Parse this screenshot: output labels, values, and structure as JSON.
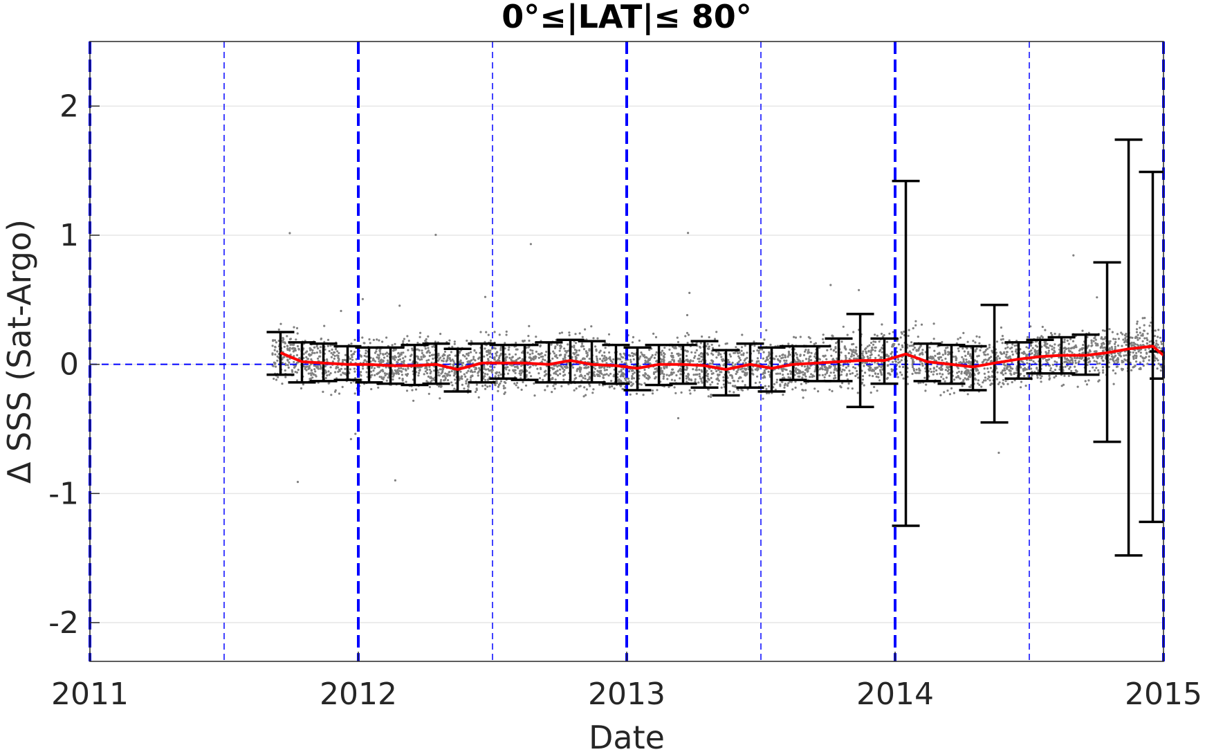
{
  "chart_data": {
    "type": "scatter",
    "title": "0°≤|LAT|≤ 80°",
    "xlabel": "Date",
    "ylabel": "Δ SSS (Sat-Argo)",
    "xlim": [
      2011.0,
      2015.0
    ],
    "ylim": [
      -2.3,
      2.5
    ],
    "x_ticks": [
      2011,
      2012,
      2013,
      2014,
      2015
    ],
    "x_tick_labels": [
      "2011",
      "2012",
      "2013",
      "2014",
      "2015"
    ],
    "y_ticks": [
      -2,
      -1,
      0,
      1,
      2
    ],
    "y_tick_labels": [
      "-2",
      "-1",
      "0",
      "1",
      "2"
    ],
    "grid": true,
    "colors": {
      "points": "#808080",
      "mean_line": "#ff0000",
      "error_bars": "#000000",
      "year_lines": "#0000ff",
      "zero_line": "#0000ff"
    },
    "year_lines": [
      2011.0,
      2012.0,
      2013.0,
      2014.0,
      2015.0
    ],
    "half_year_lines": [
      2011.5,
      2012.5,
      2013.5,
      2014.5
    ],
    "series": [
      {
        "kind": "errorbar",
        "x": [
          2011.71,
          2011.79,
          2011.87,
          2011.96,
          2012.04,
          2012.12,
          2012.21,
          2012.29,
          2012.37,
          2012.46,
          2012.54,
          2012.62,
          2012.71,
          2012.79,
          2012.87,
          2012.96,
          2013.04,
          2013.12,
          2013.21,
          2013.29,
          2013.37,
          2013.46,
          2013.54,
          2013.62,
          2013.71,
          2013.79,
          2013.87,
          2013.96,
          2014.04,
          2014.12,
          2014.21,
          2014.29,
          2014.37,
          2014.46,
          2014.54,
          2014.62,
          2014.71,
          2014.79,
          2014.87,
          2014.96,
          2015.0
        ],
        "mean": [
          0.09,
          0.02,
          0.01,
          0.0,
          0.0,
          -0.01,
          -0.01,
          0.0,
          -0.04,
          0.01,
          0.01,
          0.01,
          0.0,
          0.03,
          0.0,
          -0.01,
          -0.03,
          0.0,
          0.0,
          -0.01,
          -0.04,
          0.0,
          -0.03,
          0.0,
          0.01,
          0.02,
          0.03,
          0.03,
          0.08,
          0.02,
          0.0,
          -0.02,
          0.01,
          0.04,
          0.06,
          0.07,
          0.07,
          0.09,
          0.12,
          0.14,
          0.07
        ],
        "upper": [
          0.25,
          0.17,
          0.16,
          0.14,
          0.13,
          0.13,
          0.15,
          0.16,
          0.12,
          0.16,
          0.15,
          0.15,
          0.17,
          0.19,
          0.18,
          0.15,
          0.13,
          0.15,
          0.15,
          0.18,
          0.11,
          0.16,
          0.13,
          0.14,
          0.14,
          0.2,
          0.39,
          0.2,
          1.42,
          0.16,
          0.15,
          0.14,
          0.46,
          0.17,
          0.19,
          0.21,
          0.23,
          0.79,
          1.74,
          1.49,
          0.1
        ],
        "lower": [
          -0.08,
          -0.14,
          -0.13,
          -0.12,
          -0.14,
          -0.15,
          -0.16,
          -0.15,
          -0.21,
          -0.14,
          -0.11,
          -0.12,
          -0.14,
          -0.14,
          -0.14,
          -0.15,
          -0.2,
          -0.16,
          -0.15,
          -0.18,
          -0.24,
          -0.18,
          -0.21,
          -0.12,
          -0.13,
          -0.13,
          -0.33,
          -0.15,
          -1.25,
          -0.13,
          -0.15,
          -0.2,
          -0.45,
          -0.11,
          -0.07,
          -0.07,
          -0.08,
          -0.6,
          -1.48,
          -1.22,
          -0.11
        ]
      }
    ]
  }
}
